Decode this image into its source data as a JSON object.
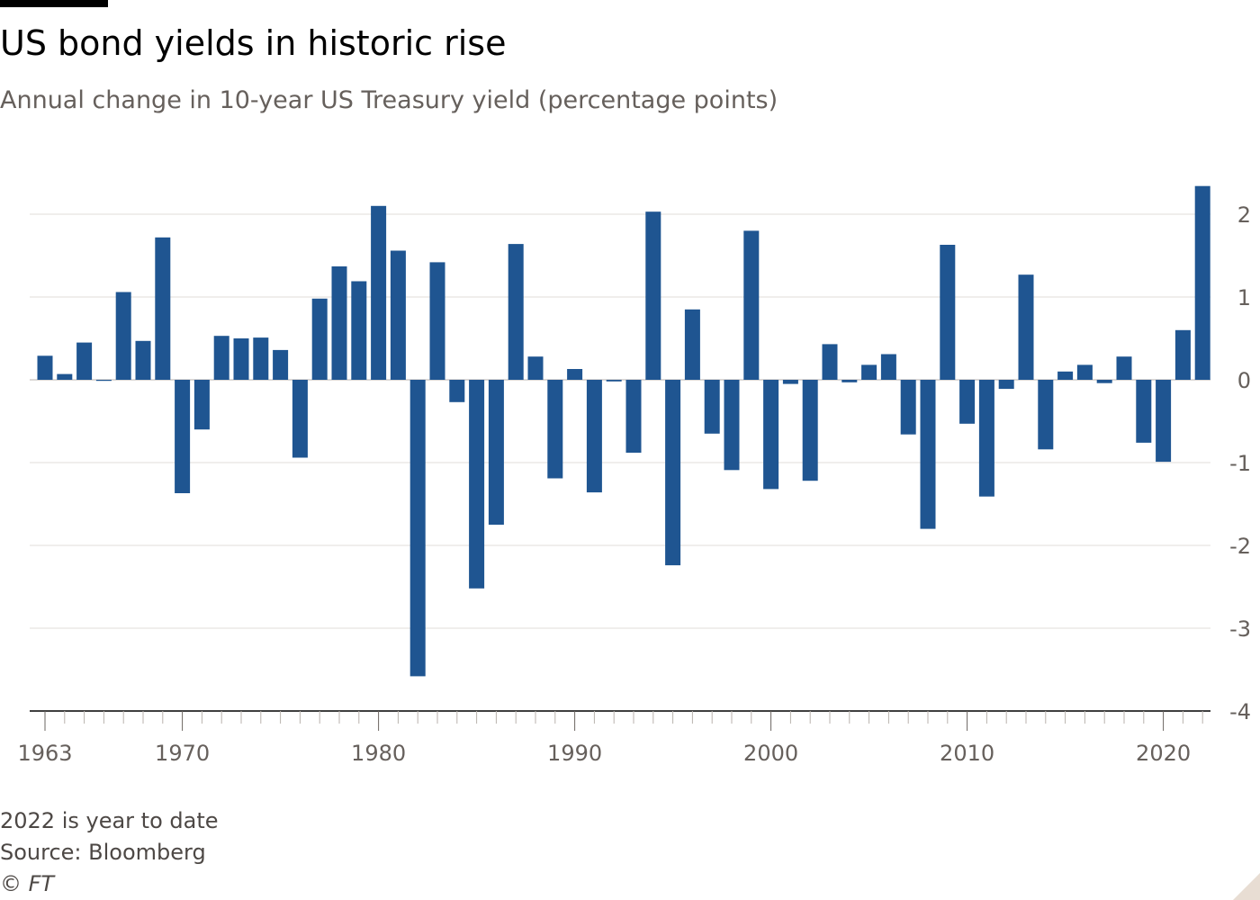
{
  "title": "US bond yields in historic rise",
  "subtitle": "Annual change in 10-year US Treasury yield (percentage points)",
  "footer": {
    "note": "2022 is year to date",
    "source": "Source: Bloomberg",
    "copyright": "© FT"
  },
  "colors": {
    "bar": "#1f5591",
    "grid": "#e0dcd8",
    "axis": "#000000",
    "tick_label": "#66605c"
  },
  "chart_data": {
    "type": "bar",
    "x": [
      1963,
      1964,
      1965,
      1966,
      1967,
      1968,
      1969,
      1970,
      1971,
      1972,
      1973,
      1974,
      1975,
      1976,
      1977,
      1978,
      1979,
      1980,
      1981,
      1982,
      1983,
      1984,
      1985,
      1986,
      1987,
      1988,
      1989,
      1990,
      1991,
      1992,
      1993,
      1994,
      1995,
      1996,
      1997,
      1998,
      1999,
      2000,
      2001,
      2002,
      2003,
      2004,
      2005,
      2006,
      2007,
      2008,
      2009,
      2010,
      2011,
      2012,
      2013,
      2014,
      2015,
      2016,
      2017,
      2018,
      2019,
      2020,
      2021,
      2022
    ],
    "values": [
      0.29,
      0.07,
      0.45,
      -0.01,
      1.06,
      0.47,
      1.72,
      -1.37,
      -0.6,
      0.53,
      0.5,
      0.51,
      0.36,
      -0.94,
      0.98,
      1.37,
      1.19,
      2.1,
      1.56,
      -3.58,
      1.42,
      -0.27,
      -2.52,
      -1.75,
      1.64,
      0.28,
      -1.19,
      0.13,
      -1.36,
      -0.02,
      -0.88,
      2.03,
      -2.24,
      0.85,
      -0.65,
      -1.09,
      1.8,
      -1.32,
      -0.05,
      -1.22,
      0.43,
      -0.03,
      0.18,
      0.31,
      -0.66,
      -1.8,
      1.63,
      -0.53,
      -1.41,
      -0.11,
      1.27,
      -0.84,
      0.1,
      0.18,
      -0.04,
      0.28,
      -0.76,
      -0.99,
      0.6,
      2.34
    ],
    "xticks": [
      1963,
      1970,
      1980,
      1990,
      2000,
      2010,
      2020
    ],
    "yticks": [
      2,
      1,
      0,
      -1,
      -2,
      -3,
      -4
    ],
    "ylim": [
      -4,
      2.3
    ],
    "y_axis_position": "right",
    "grid": true,
    "xlabel": "",
    "ylabel": ""
  }
}
